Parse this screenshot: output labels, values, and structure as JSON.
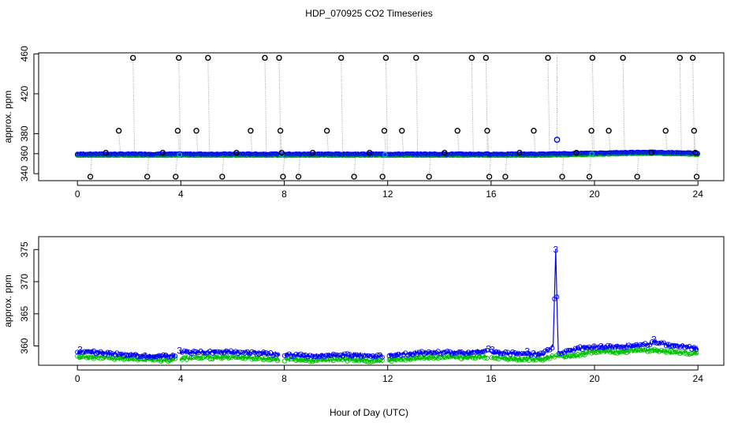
{
  "title": "HDP_070925  CO2 Timeseries",
  "xlabel": "Hour of Day (UTC)",
  "colors": {
    "outlier": "#000000",
    "series1": "#00c000",
    "series3": "#0000ff",
    "connector": "#a0a0a0",
    "flag": "#00c0c0"
  },
  "chart_data": [
    {
      "type": "scatter",
      "panel": "top",
      "title": "",
      "xlabel": "",
      "ylabel": "approx. ppm",
      "xlim": [
        -1.5,
        25
      ],
      "ylim": [
        333,
        461
      ],
      "xticks": [
        "0",
        "4",
        "8",
        "12",
        "16",
        "20",
        "24"
      ],
      "yticks": [
        "340",
        "360",
        "380",
        "420",
        "460"
      ],
      "grid": false,
      "baseline": {
        "points": [
          [
            0.0,
            359
          ],
          [
            4.0,
            359
          ],
          [
            8.0,
            359
          ],
          [
            12.0,
            359
          ],
          [
            16.0,
            359
          ],
          [
            18.0,
            359
          ],
          [
            20.0,
            360
          ],
          [
            22.0,
            361
          ],
          [
            24.0,
            360
          ]
        ],
        "series": [
          "3",
          "1"
        ]
      },
      "outliers_black_circles": [
        [
          0.5,
          337
        ],
        [
          1.1,
          361
        ],
        [
          1.6,
          383
        ],
        [
          2.15,
          456
        ],
        [
          2.7,
          337
        ],
        [
          3.3,
          361
        ],
        [
          3.8,
          337
        ],
        [
          3.88,
          383
        ],
        [
          3.92,
          456
        ],
        [
          4.6,
          383
        ],
        [
          5.05,
          456
        ],
        [
          5.6,
          337
        ],
        [
          6.15,
          361
        ],
        [
          6.7,
          383
        ],
        [
          7.25,
          456
        ],
        [
          7.8,
          456
        ],
        [
          7.85,
          383
        ],
        [
          7.9,
          361
        ],
        [
          7.95,
          337
        ],
        [
          8.55,
          337
        ],
        [
          9.1,
          361
        ],
        [
          9.65,
          383
        ],
        [
          10.2,
          456
        ],
        [
          10.7,
          337
        ],
        [
          11.3,
          361
        ],
        [
          11.8,
          337
        ],
        [
          11.87,
          383
        ],
        [
          11.93,
          456
        ],
        [
          12.55,
          383
        ],
        [
          13.1,
          456
        ],
        [
          13.6,
          337
        ],
        [
          14.2,
          361
        ],
        [
          14.7,
          383
        ],
        [
          15.25,
          456
        ],
        [
          15.8,
          456
        ],
        [
          15.85,
          383
        ],
        [
          15.93,
          337
        ],
        [
          16.55,
          337
        ],
        [
          17.1,
          361
        ],
        [
          17.65,
          383
        ],
        [
          18.2,
          456
        ],
        [
          18.75,
          337
        ],
        [
          19.3,
          361
        ],
        [
          19.8,
          337
        ],
        [
          19.88,
          383
        ],
        [
          19.92,
          456
        ],
        [
          20.55,
          383
        ],
        [
          21.1,
          456
        ],
        [
          21.65,
          337
        ],
        [
          22.2,
          361
        ],
        [
          22.75,
          383
        ],
        [
          23.3,
          456
        ],
        [
          23.8,
          456
        ],
        [
          23.85,
          383
        ],
        [
          23.9,
          361
        ],
        [
          23.95,
          337
        ]
      ],
      "spike_blue_circle": [
        18.55,
        374
      ]
    },
    {
      "type": "line",
      "panel": "bottom",
      "title": "",
      "xlabel": "Hour of Day (UTC)",
      "ylabel": "approx. ppm",
      "xlim": [
        -1.5,
        25
      ],
      "ylim": [
        357,
        377
      ],
      "xticks": [
        "0",
        "4",
        "8",
        "12",
        "16",
        "20",
        "24"
      ],
      "yticks": [
        "360",
        "365",
        "370",
        "375"
      ],
      "grid": false,
      "series": [
        {
          "name": "1",
          "x": [
            0,
            0.5,
            1,
            1.5,
            2,
            2.5,
            3,
            3.5,
            3.8,
            4,
            5,
            6,
            7,
            7.8,
            8,
            9,
            10,
            11,
            11.8,
            12,
            13,
            14,
            15,
            15.8,
            16,
            17,
            18,
            18.5,
            19,
            19.5,
            20,
            21,
            22,
            23,
            24
          ],
          "y": [
            358.2,
            358.3,
            358.2,
            358.1,
            358.0,
            357.9,
            357.8,
            357.8,
            357.8,
            358.1,
            358.2,
            358.3,
            358.1,
            357.9,
            357.9,
            357.8,
            357.9,
            357.8,
            357.7,
            357.8,
            358.1,
            358.3,
            358.2,
            358.3,
            358.2,
            358.0,
            358.0,
            358.4,
            358.3,
            358.7,
            359.2,
            359.1,
            359.4,
            359.0,
            358.9
          ]
        },
        {
          "name": "3",
          "x": [
            0,
            0.5,
            1,
            1.5,
            2,
            2.5,
            3,
            3.5,
            3.8,
            4,
            5,
            6,
            7,
            7.8,
            8,
            9,
            10,
            11,
            11.8,
            12,
            13,
            14,
            15,
            15.8,
            16,
            17,
            18,
            18.4,
            18.5,
            18.55,
            18.6,
            18.7,
            19,
            19.5,
            20,
            21,
            22,
            22.3,
            23,
            24
          ],
          "y": [
            359.0,
            359.1,
            358.9,
            358.7,
            358.6,
            358.5,
            358.4,
            358.5,
            358.5,
            359.0,
            359.0,
            359.1,
            358.9,
            358.7,
            358.6,
            358.5,
            358.6,
            358.5,
            358.4,
            358.5,
            358.9,
            359.0,
            358.9,
            359.2,
            359.0,
            358.8,
            358.7,
            360.0,
            375.0,
            366.0,
            359.0,
            358.9,
            359.2,
            359.7,
            359.8,
            359.9,
            360.2,
            360.6,
            360.1,
            359.6
          ]
        }
      ],
      "labels_shown": [
        "3"
      ]
    }
  ]
}
